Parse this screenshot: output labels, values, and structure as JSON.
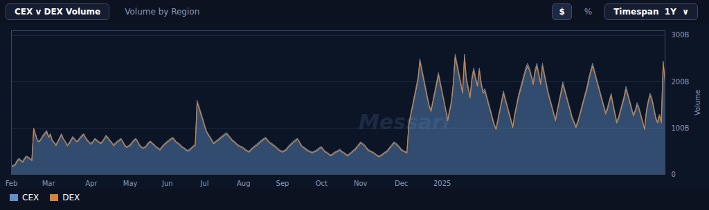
{
  "chart_data": {
    "type": "area",
    "title": "CEX v DEX Volume",
    "subtitle": "Volume by Region",
    "annotations": [
      "$",
      "%",
      "Timespan  1Y  ∨",
      "Messari"
    ],
    "y_label": "Volume",
    "categories": [
      "Feb",
      null,
      null,
      null,
      null,
      null,
      null,
      null,
      null,
      null,
      null,
      null,
      null,
      null,
      null,
      null,
      null,
      null,
      null,
      null,
      "Mar",
      null,
      null,
      null,
      null,
      null,
      null,
      null,
      null,
      null,
      null,
      null,
      null,
      null,
      null,
      null,
      null,
      null,
      null,
      null,
      null,
      null,
      null,
      "Apr",
      null,
      null,
      null,
      null,
      null,
      null,
      null,
      null,
      null,
      null,
      null,
      null,
      null,
      null,
      null,
      null,
      null,
      null,
      null,
      null,
      "May",
      null,
      null,
      null,
      null,
      null,
      null,
      null,
      null,
      null,
      null,
      null,
      null,
      null,
      null,
      null,
      null,
      null,
      null,
      null,
      "Jun",
      null,
      null,
      null,
      null,
      null,
      null,
      null,
      null,
      null,
      null,
      null,
      null,
      null,
      null,
      null,
      null,
      null,
      null,
      null,
      "Jul",
      null,
      null,
      null,
      null,
      null,
      null,
      null,
      null,
      null,
      null,
      null,
      null,
      null,
      null,
      null,
      null,
      null,
      null,
      null,
      null,
      "Aug",
      null,
      null,
      null,
      null,
      null,
      null,
      null,
      null,
      null,
      null,
      null,
      null,
      null,
      null,
      null,
      null,
      null,
      null,
      null,
      null,
      "Sep",
      null,
      null,
      null,
      null,
      null,
      null,
      null,
      null,
      null,
      null,
      null,
      null,
      null,
      null,
      null,
      null,
      null,
      null,
      null,
      null,
      "Oct",
      null,
      null,
      null,
      null,
      null,
      null,
      null,
      null,
      null,
      null,
      null,
      null,
      null,
      null,
      null,
      null,
      null,
      null,
      null,
      null,
      "Nov",
      null,
      null,
      null,
      null,
      null,
      null,
      null,
      null,
      null,
      null,
      null,
      null,
      null,
      null,
      null,
      null,
      null,
      null,
      null,
      null,
      null,
      "Dec",
      null,
      null,
      null,
      null,
      null,
      null,
      null,
      null,
      null,
      null,
      null,
      null,
      null,
      null,
      null,
      null,
      null,
      null,
      null,
      null,
      null,
      "2025",
      null,
      null,
      null,
      null,
      null,
      null,
      null,
      null,
      null,
      null,
      null,
      null,
      null,
      null,
      null,
      null,
      null,
      null,
      null,
      null,
      null,
      null,
      null,
      null,
      null,
      null,
      null,
      null,
      null,
      null,
      null,
      null,
      null,
      null,
      null,
      null,
      null,
      null,
      null,
      null,
      null,
      null,
      null,
      null,
      null,
      null,
      null,
      null,
      null,
      null,
      null,
      null,
      null,
      null,
      null,
      null,
      null,
      null,
      null,
      null,
      null,
      null,
      null,
      null,
      null,
      null,
      null,
      null,
      null,
      null,
      null,
      null,
      null,
      null,
      null,
      null,
      null,
      null,
      null,
      null,
      null,
      null,
      null,
      null,
      null,
      null,
      null,
      null,
      null,
      null,
      null,
      null,
      null,
      null,
      null,
      null,
      null,
      null,
      null,
      null,
      null,
      null,
      null,
      null,
      null,
      null,
      null,
      null,
      null,
      null,
      null,
      null,
      null,
      null,
      null,
      null,
      null,
      null,
      null,
      null
    ],
    "series": [
      {
        "name": "CEX",
        "type": "area",
        "color": "#6090c8",
        "values": [
          18,
          20,
          22,
          30,
          35,
          32,
          28,
          35,
          40,
          38,
          35,
          32,
          100,
          88,
          75,
          72,
          78,
          85,
          90,
          95,
          82,
          88,
          75,
          70,
          65,
          72,
          80,
          88,
          78,
          72,
          65,
          68,
          75,
          82,
          78,
          72,
          75,
          80,
          85,
          88,
          80,
          75,
          70,
          68,
          72,
          78,
          75,
          72,
          68,
          72,
          78,
          85,
          80,
          75,
          70,
          65,
          68,
          72,
          75,
          78,
          72,
          65,
          60,
          62,
          65,
          70,
          75,
          78,
          72,
          65,
          60,
          58,
          60,
          65,
          70,
          72,
          68,
          65,
          60,
          58,
          55,
          60,
          65,
          68,
          72,
          75,
          78,
          80,
          75,
          70,
          68,
          65,
          60,
          58,
          55,
          52,
          55,
          58,
          62,
          65,
          160,
          148,
          135,
          122,
          108,
          95,
          88,
          82,
          75,
          68,
          72,
          75,
          78,
          82,
          85,
          88,
          90,
          85,
          80,
          75,
          72,
          68,
          65,
          62,
          60,
          58,
          55,
          52,
          50,
          55,
          58,
          62,
          65,
          68,
          72,
          75,
          78,
          80,
          75,
          70,
          68,
          65,
          62,
          58,
          55,
          52,
          50,
          52,
          55,
          60,
          65,
          68,
          72,
          75,
          78,
          72,
          65,
          60,
          58,
          55,
          52,
          50,
          48,
          50,
          52,
          55,
          58,
          60,
          55,
          50,
          48,
          45,
          42,
          45,
          48,
          50,
          52,
          55,
          50,
          48,
          45,
          42,
          45,
          48,
          52,
          55,
          60,
          65,
          70,
          68,
          65,
          60,
          55,
          52,
          50,
          48,
          45,
          42,
          40,
          42,
          45,
          48,
          50,
          55,
          60,
          65,
          70,
          68,
          65,
          60,
          55,
          52,
          50,
          48,
          110,
          130,
          150,
          170,
          190,
          210,
          250,
          230,
          210,
          190,
          170,
          150,
          140,
          160,
          180,
          200,
          220,
          200,
          180,
          160,
          140,
          120,
          140,
          160,
          200,
          260,
          240,
          220,
          200,
          180,
          260,
          210,
          190,
          170,
          210,
          230,
          210,
          195,
          230,
          200,
          180,
          185,
          170,
          155,
          140,
          125,
          110,
          100,
          120,
          140,
          160,
          180,
          165,
          150,
          135,
          120,
          105,
          130,
          150,
          170,
          185,
          200,
          215,
          230,
          240,
          230,
          215,
          200,
          225,
          240,
          220,
          200,
          240,
          220,
          200,
          180,
          165,
          150,
          135,
          120,
          140,
          160,
          180,
          200,
          185,
          170,
          155,
          140,
          125,
          115,
          105,
          115,
          130,
          145,
          160,
          175,
          190,
          210,
          225,
          240,
          225,
          210,
          195,
          180,
          165,
          150,
          135,
          145,
          160,
          175,
          155,
          135,
          115,
          125,
          140,
          155,
          170,
          190,
          175,
          160,
          145,
          130,
          140,
          155,
          145,
          130,
          115,
          100,
          140,
          160,
          175,
          165,
          145,
          125,
          115,
          130,
          115,
          245,
          205
        ]
      },
      {
        "name": "DEX",
        "type": "line",
        "color": "#d4843a",
        "values": [
          16,
          18,
          20,
          28,
          32,
          30,
          26,
          32,
          38,
          36,
          33,
          30,
          98,
          85,
          72,
          70,
          76,
          82,
          87,
          92,
          80,
          85,
          72,
          68,
          62,
          70,
          77,
          85,
          76,
          70,
          62,
          65,
          72,
          79,
          76,
          70,
          72,
          78,
          82,
          86,
          78,
          72,
          68,
          65,
          70,
          76,
          72,
          70,
          66,
          70,
          76,
          82,
          78,
          72,
          68,
          62,
          65,
          70,
          72,
          76,
          70,
          62,
          58,
          60,
          62,
          68,
          72,
          76,
          70,
          62,
          58,
          56,
          58,
          62,
          68,
          70,
          66,
          62,
          58,
          56,
          52,
          58,
          62,
          66,
          70,
          72,
          76,
          78,
          72,
          68,
          65,
          62,
          58,
          56,
          52,
          50,
          52,
          56,
          60,
          62,
          155,
          143,
          130,
          118,
          104,
          92,
          85,
          79,
          72,
          66,
          70,
          72,
          76,
          79,
          82,
          85,
          87,
          82,
          78,
          72,
          70,
          65,
          62,
          60,
          58,
          56,
          52,
          50,
          48,
          52,
          56,
          60,
          62,
          65,
          70,
          72,
          76,
          78,
          72,
          68,
          65,
          62,
          60,
          56,
          52,
          50,
          48,
          50,
          52,
          58,
          62,
          65,
          70,
          72,
          76,
          70,
          62,
          58,
          56,
          52,
          50,
          48,
          46,
          48,
          50,
          52,
          56,
          58,
          52,
          48,
          46,
          43,
          40,
          43,
          46,
          48,
          50,
          52,
          48,
          46,
          43,
          40,
          43,
          46,
          50,
          52,
          58,
          62,
          68,
          65,
          62,
          58,
          52,
          50,
          48,
          46,
          43,
          40,
          38,
          40,
          43,
          46,
          48,
          52,
          58,
          62,
          68,
          65,
          62,
          58,
          52,
          50,
          48,
          46,
          106,
          126,
          146,
          165,
          184,
          204,
          244,
          224,
          204,
          184,
          165,
          146,
          136,
          156,
          175,
          194,
          214,
          194,
          175,
          156,
          136,
          116,
          136,
          156,
          195,
          254,
          234,
          214,
          194,
          175,
          254,
          204,
          184,
          165,
          204,
          224,
          204,
          190,
          224,
          194,
          175,
          180,
          165,
          150,
          136,
          120,
          106,
          97,
          116,
          136,
          156,
          175,
          160,
          146,
          130,
          116,
          101,
          126,
          146,
          165,
          180,
          194,
          210,
          224,
          234,
          224,
          210,
          194,
          220,
          234,
          214,
          194,
          234,
          214,
          194,
          175,
          160,
          146,
          130,
          116,
          136,
          156,
          175,
          194,
          180,
          165,
          150,
          136,
          120,
          111,
          101,
          111,
          126,
          140,
          156,
          170,
          184,
          204,
          220,
          234,
          220,
          204,
          190,
          175,
          160,
          146,
          130,
          140,
          156,
          170,
          150,
          130,
          111,
          120,
          136,
          150,
          165,
          184,
          170,
          156,
          140,
          126,
          136,
          150,
          140,
          126,
          111,
          97,
          136,
          156,
          170,
          160,
          140,
          120,
          111,
          126,
          111,
          240,
          200
        ]
      }
    ],
    "ylim": [
      0,
      310
    ],
    "yticks": [
      0,
      {
        "value": 100,
        "label": "100B"
      },
      {
        "value": 200,
        "label": "200B"
      },
      {
        "value": 300,
        "label": "300B"
      }
    ],
    "grid": true,
    "legend": "lower left"
  }
}
